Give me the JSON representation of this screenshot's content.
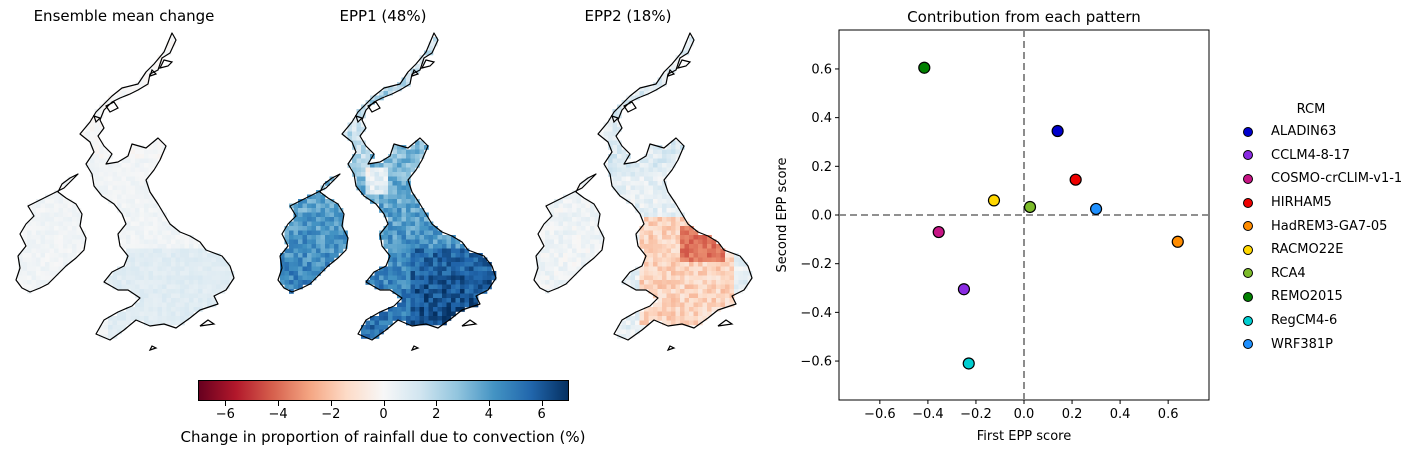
{
  "maps": [
    {
      "title": "Ensemble mean change",
      "pattern": "mean"
    },
    {
      "title": "EPP1 (48%)",
      "pattern": "epp1"
    },
    {
      "title": "EPP2 (18%)",
      "pattern": "epp2"
    }
  ],
  "colorbar": {
    "label": "Change in proportion of rainfall due to convection (%)",
    "min": -7,
    "max": 7,
    "ticks": [
      "−6",
      "−4",
      "−2",
      "0",
      "2",
      "4",
      "6"
    ],
    "tick_values": [
      -6,
      -4,
      -2,
      0,
      2,
      4,
      6
    ],
    "colormap": "RdBu"
  },
  "chart_data": {
    "type": "scatter",
    "title": "Contribution from each pattern",
    "xlabel": "First EPP score",
    "ylabel": "Second EPP score",
    "xlim": [
      -0.77,
      0.77
    ],
    "ylim": [
      -0.76,
      0.76
    ],
    "xticks": [
      -0.6,
      -0.4,
      -0.2,
      0.0,
      0.2,
      0.4,
      0.6
    ],
    "yticks": [
      -0.6,
      -0.4,
      -0.2,
      0.0,
      0.2,
      0.4,
      0.6
    ],
    "xtick_labels": [
      "−0.6",
      "−0.4",
      "−0.2",
      "0.0",
      "0.2",
      "0.4",
      "0.6"
    ],
    "ytick_labels": [
      "−0.6",
      "−0.4",
      "−0.2",
      "0.0",
      "0.2",
      "0.4",
      "0.6"
    ],
    "reference_lines": {
      "x": 0,
      "y": 0,
      "style": "dashed"
    },
    "legend_title": "RCM",
    "legend_position": "right",
    "series": [
      {
        "name": "ALADIN63",
        "color": "#0000cd",
        "x": 0.14,
        "y": 0.345
      },
      {
        "name": "CCLM4-8-17",
        "color": "#8a2be2",
        "x": -0.25,
        "y": -0.305
      },
      {
        "name": "COSMO-crCLIM-v1-1",
        "color": "#c71585",
        "x": -0.355,
        "y": -0.07
      },
      {
        "name": "HIRHAM5",
        "color": "#ee0000",
        "x": 0.215,
        "y": 0.145
      },
      {
        "name": "HadREM3-GA7-05",
        "color": "#ff8c00",
        "x": 0.64,
        "y": -0.11
      },
      {
        "name": "RACMO22E",
        "color": "#ffd700",
        "x": -0.125,
        "y": 0.06
      },
      {
        "name": "RCA4",
        "color": "#7cbb2a",
        "x": 0.025,
        "y": 0.033
      },
      {
        "name": "REMO2015",
        "color": "#008000",
        "x": -0.415,
        "y": 0.605
      },
      {
        "name": "RegCM4-6",
        "color": "#00ced1",
        "x": -0.23,
        "y": -0.61
      },
      {
        "name": "WRF381P",
        "color": "#1e90ff",
        "x": 0.3,
        "y": 0.025
      }
    ]
  }
}
